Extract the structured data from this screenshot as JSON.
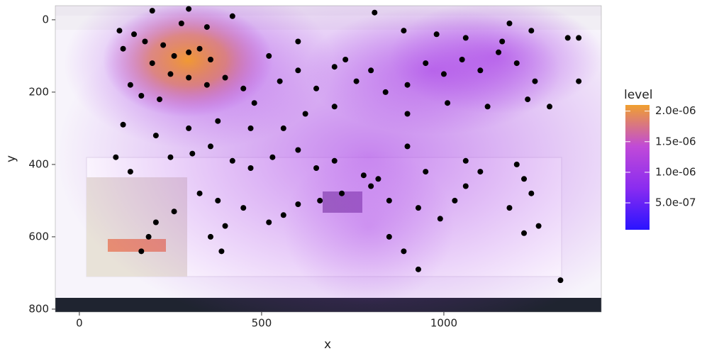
{
  "chart_data": {
    "type": "scatter",
    "x_label": "x",
    "y_label": "y",
    "xlim": [
      -66,
      1432
    ],
    "ylim": [
      -39,
      808
    ],
    "y_reversed": true,
    "xticks": [
      0,
      500,
      1000
    ],
    "yticks": [
      0,
      200,
      400,
      600,
      800
    ],
    "color": "#000000",
    "x": [
      110,
      150,
      200,
      300,
      280,
      350,
      420,
      600,
      810,
      890,
      980,
      1060,
      1160,
      1180,
      1240,
      1340,
      1370,
      1370,
      120,
      180,
      230,
      260,
      300,
      330,
      360,
      250,
      200,
      140,
      170,
      220,
      300,
      350,
      400,
      450,
      480,
      520,
      550,
      600,
      650,
      700,
      730,
      760,
      800,
      840,
      900,
      950,
      1000,
      1050,
      1100,
      1150,
      1200,
      1250,
      1230,
      1290,
      1120,
      1010,
      900,
      700,
      620,
      560,
      470,
      380,
      300,
      210,
      120,
      100,
      140,
      250,
      310,
      360,
      420,
      470,
      530,
      600,
      650,
      700,
      780,
      820,
      900,
      950,
      1060,
      1100,
      1200,
      1220,
      1240,
      1180,
      1060,
      1030,
      990,
      930,
      850,
      800,
      720,
      660,
      600,
      560,
      520,
      450,
      380,
      330,
      260,
      210,
      190,
      170,
      390,
      400,
      360,
      850,
      890,
      930,
      1220,
      1260,
      1320
    ],
    "values": [
      30,
      40,
      -25,
      -30,
      10,
      20,
      -10,
      60,
      -20,
      30,
      40,
      50,
      60,
      10,
      30,
      50,
      50,
      170,
      80,
      60,
      70,
      100,
      90,
      80,
      110,
      150,
      120,
      180,
      210,
      220,
      160,
      180,
      160,
      190,
      230,
      100,
      170,
      140,
      190,
      130,
      110,
      170,
      140,
      200,
      180,
      120,
      150,
      110,
      140,
      90,
      120,
      170,
      220,
      240,
      240,
      230,
      260,
      240,
      260,
      300,
      300,
      280,
      300,
      320,
      290,
      380,
      420,
      380,
      370,
      350,
      390,
      410,
      380,
      360,
      410,
      390,
      430,
      440,
      350,
      420,
      390,
      420,
      400,
      440,
      480,
      520,
      460,
      500,
      550,
      520,
      500,
      460,
      480,
      500,
      510,
      540,
      560,
      520,
      500,
      480,
      530,
      560,
      600,
      640,
      640,
      570,
      600,
      600,
      640,
      690,
      590,
      570,
      720
    ],
    "colorbar": {
      "title": "level",
      "lim": [
        6e-08,
        2.1e-06
      ],
      "colors": [
        "#2a14ff",
        "#8a2cf0",
        "#c04ad8",
        "#f0a030"
      ],
      "ticks": [
        {
          "value": 5e-07,
          "label": "5.0e-07"
        },
        {
          "value": 1e-06,
          "label": "1.0e-06"
        },
        {
          "value": 1.5e-06,
          "label": "1.5e-06"
        },
        {
          "value": 2e-06,
          "label": "2.0e-06"
        }
      ]
    }
  }
}
